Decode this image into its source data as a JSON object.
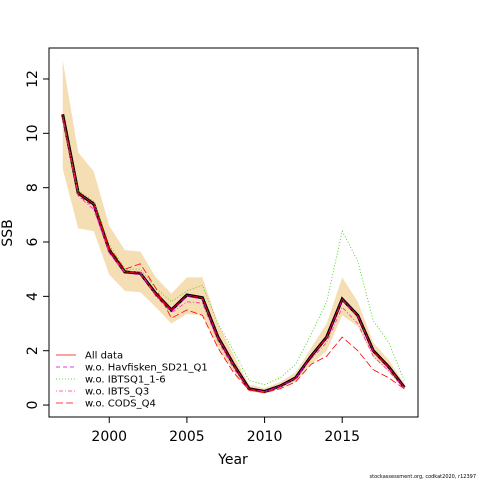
{
  "chart_data": {
    "type": "line",
    "x_label": "Year",
    "y_label": "SSB",
    "note": "stockassessment.org, codkat2020, r12397",
    "x": [
      1997,
      1998,
      1999,
      2000,
      2001,
      2002,
      2003,
      2004,
      2005,
      2006,
      2007,
      2008,
      2009,
      2010,
      2011,
      2012,
      2013,
      2014,
      2015,
      2016,
      2017,
      2018,
      2019
    ],
    "xlim": [
      1996.12,
      2019.88
    ],
    "xticks": [
      2000,
      2005,
      2010,
      2015
    ],
    "ylim": [
      -0.44,
      13.14
    ],
    "yticks": [
      0,
      2,
      4,
      6,
      8,
      10,
      12
    ],
    "legend": "bottomleft",
    "band": {
      "color": "#f5deb3",
      "lower": [
        8.7,
        6.5,
        6.4,
        4.8,
        4.2,
        4.15,
        3.6,
        3.0,
        3.35,
        3.3,
        2.1,
        1.25,
        0.5,
        0.42,
        0.6,
        0.85,
        1.5,
        2.0,
        3.3,
        2.9,
        1.75,
        1.2,
        0.55
      ],
      "upper": [
        12.7,
        9.3,
        8.6,
        6.6,
        5.7,
        5.65,
        4.7,
        4.1,
        4.7,
        4.7,
        3.0,
        1.85,
        0.75,
        0.62,
        0.85,
        1.2,
        2.1,
        3.0,
        4.7,
        3.8,
        2.3,
        1.65,
        0.8
      ]
    },
    "series": [
      {
        "name": "All data",
        "color": "#ff0000",
        "dash": "",
        "values": [
          10.7,
          7.8,
          7.4,
          5.7,
          4.9,
          4.85,
          4.1,
          3.5,
          4.05,
          3.95,
          2.5,
          1.5,
          0.6,
          0.5,
          0.7,
          1.0,
          1.8,
          2.5,
          3.9,
          3.3,
          2.0,
          1.4,
          0.65
        ]
      },
      {
        "name": "w.o. Havfisken_SD21_Q1",
        "color": "#cc00cc",
        "dash": "4 3",
        "values": [
          10.6,
          7.7,
          7.3,
          5.6,
          4.85,
          4.8,
          4.05,
          3.45,
          4.0,
          3.9,
          2.45,
          1.45,
          0.6,
          0.5,
          0.7,
          1.0,
          1.8,
          2.45,
          3.85,
          3.25,
          1.95,
          1.35,
          0.63
        ]
      },
      {
        "name": "w.o. IBTSQ1_1-6",
        "color": "#33cc00",
        "dash": "1 2",
        "values": [
          10.6,
          7.9,
          7.5,
          5.9,
          5.0,
          5.0,
          4.3,
          3.8,
          4.2,
          4.4,
          3.0,
          2.0,
          0.9,
          0.75,
          1.0,
          1.5,
          2.6,
          3.8,
          6.4,
          5.3,
          3.1,
          2.3,
          0.9
        ]
      },
      {
        "name": "w.o. IBTS_Q3",
        "color": "#ff3399",
        "dash": "1 2 4 2",
        "values": [
          10.5,
          7.7,
          7.2,
          5.6,
          4.9,
          4.9,
          4.0,
          3.4,
          3.8,
          3.75,
          2.35,
          1.35,
          0.55,
          0.48,
          0.65,
          0.95,
          1.7,
          2.3,
          3.6,
          3.0,
          1.8,
          1.25,
          0.6
        ]
      },
      {
        "name": "w.o. CODS_Q4",
        "color": "#ff0000",
        "dash": "7 3",
        "values": [
          10.6,
          7.8,
          7.4,
          5.8,
          5.0,
          5.2,
          4.3,
          3.2,
          3.5,
          3.3,
          2.1,
          1.2,
          0.55,
          0.45,
          0.6,
          0.85,
          1.5,
          1.8,
          2.5,
          2.0,
          1.3,
          1.0,
          0.6
        ]
      }
    ]
  }
}
